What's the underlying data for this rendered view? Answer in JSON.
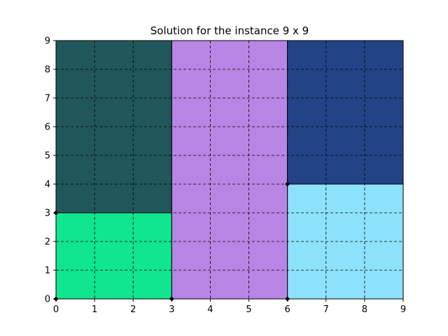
{
  "chart_data": {
    "type": "rectangle-packing",
    "title": "Solution for the instance 9 x 9",
    "xlabel": "",
    "ylabel": "",
    "xlim": [
      0,
      9
    ],
    "ylim": [
      0,
      9
    ],
    "xticks": [
      "0",
      "1",
      "2",
      "3",
      "4",
      "5",
      "6",
      "7",
      "8",
      "9"
    ],
    "yticks": [
      "0",
      "1",
      "2",
      "3",
      "4",
      "5",
      "6",
      "7",
      "8",
      "9"
    ],
    "grid": true,
    "grid_style": "dashed",
    "rectangles": [
      {
        "x": 0,
        "y": 0,
        "w": 3,
        "h": 3,
        "color": "#10e590"
      },
      {
        "x": 0,
        "y": 3,
        "w": 3,
        "h": 6,
        "color": "#20575b"
      },
      {
        "x": 3,
        "y": 0,
        "w": 3,
        "h": 9,
        "color": "#b985e5"
      },
      {
        "x": 6,
        "y": 0,
        "w": 3,
        "h": 4,
        "color": "#8ce2fa"
      },
      {
        "x": 6,
        "y": 4,
        "w": 3,
        "h": 5,
        "color": "#224487"
      }
    ],
    "corner_markers": [
      [
        0,
        0
      ],
      [
        0,
        3
      ],
      [
        3,
        0
      ],
      [
        6,
        0
      ],
      [
        6,
        4
      ]
    ]
  }
}
